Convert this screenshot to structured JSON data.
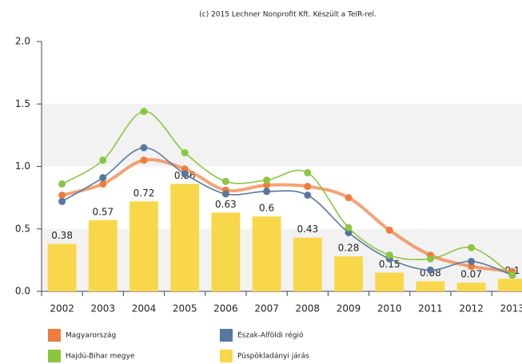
{
  "chart_data": {
    "type": "bar",
    "title": "(c) 2015 Lechner Nonprofit Kft. Készült a TeIR-rel.",
    "categories": [
      "2002",
      "2003",
      "2004",
      "2005",
      "2006",
      "2007",
      "2008",
      "2009",
      "2010",
      "2011",
      "2012",
      "2013"
    ],
    "ylim": [
      0,
      2
    ],
    "yticks": [
      {
        "value": 0,
        "label": "0.0"
      },
      {
        "value": 0.5,
        "label": "0.5"
      },
      {
        "value": 1,
        "label": "1.0"
      },
      {
        "value": 1.5,
        "label": "1.5"
      },
      {
        "value": 2,
        "label": "2.0"
      }
    ],
    "series": [
      {
        "name": "Püspökladányi járás",
        "type": "bar",
        "color": "#f8d84a",
        "values": [
          0.38,
          0.57,
          0.72,
          0.86,
          0.63,
          0.6,
          0.43,
          0.28,
          0.15,
          0.08,
          0.07,
          0.1
        ]
      },
      {
        "name": "Magyarország",
        "type": "line",
        "color": "#f07c3c",
        "values": [
          0.77,
          0.86,
          1.05,
          0.98,
          0.81,
          0.85,
          0.84,
          0.75,
          0.49,
          0.29,
          0.2,
          0.16
        ]
      },
      {
        "name": "Észak-Alföldi régió",
        "type": "line",
        "color": "#56789e",
        "values": [
          0.72,
          0.91,
          1.15,
          0.94,
          0.78,
          0.8,
          0.77,
          0.47,
          0.26,
          0.17,
          0.24,
          0.13
        ]
      },
      {
        "name": "Hajdú-Bihar megye",
        "type": "line",
        "color": "#8cc63f",
        "values": [
          0.86,
          1.05,
          1.44,
          1.11,
          0.88,
          0.89,
          0.95,
          0.51,
          0.29,
          0.26,
          0.35,
          0.13
        ]
      }
    ],
    "legend": "bottom"
  }
}
